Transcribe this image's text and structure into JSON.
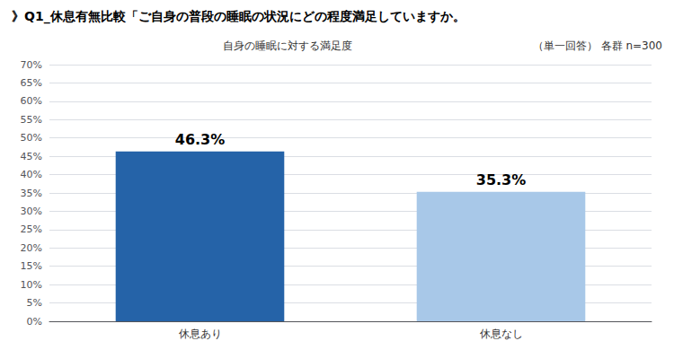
{
  "chart_data": {
    "type": "bar",
    "title": "》Q1_休息有無比較「ご自身の普段の睡眠の状況にどの程度満足していますか。",
    "subtitle": [
      "自身の睡眠に対する満足度",
      "（単一回答） 各群 n=300"
    ],
    "categories": [
      "休息あり",
      "休息なし"
    ],
    "values": [
      46.3,
      35.3
    ],
    "value_labels": [
      "46.3%",
      "35.3%"
    ],
    "colors": [
      "#2563a8",
      "#a8c8e8"
    ],
    "ylim": [
      0,
      70
    ],
    "yticks": [
      {
        "value": 0,
        "label": "0%"
      },
      {
        "value": 5,
        "label": "5%"
      },
      {
        "value": 10,
        "label": "10%"
      },
      {
        "value": 15,
        "label": "15%"
      },
      {
        "value": 20,
        "label": "20%"
      },
      {
        "value": 25,
        "label": "25%"
      },
      {
        "value": 30,
        "label": "30%"
      },
      {
        "value": 35,
        "label": "35%"
      },
      {
        "value": 40,
        "label": "40%"
      },
      {
        "value": 45,
        "label": "45%"
      },
      {
        "value": 50,
        "label": "50%"
      },
      {
        "value": 55,
        "label": "55%"
      },
      {
        "value": 60,
        "label": "60%"
      },
      {
        "value": 65,
        "label": "65%"
      },
      {
        "value": 70,
        "label": "70%"
      }
    ],
    "grid": true,
    "data_labels": true
  }
}
